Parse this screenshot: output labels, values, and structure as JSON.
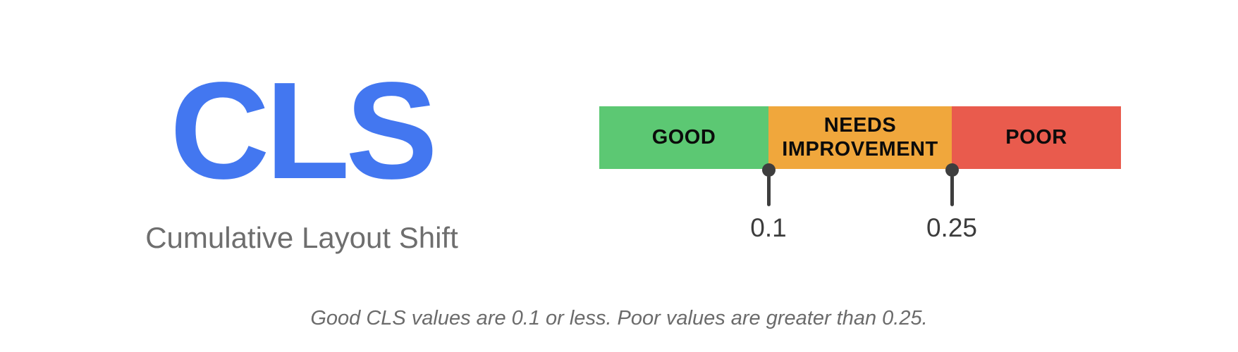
{
  "metric": {
    "abbreviation": "CLS",
    "full_name": "Cumulative Layout Shift"
  },
  "colors": {
    "title_blue": "#4377F0",
    "subtitle_gray": "#6E6E6E",
    "good_green": "#5CC873",
    "needs_improvement_orange": "#F0A73C",
    "poor_red": "#E95B4D",
    "marker_gray": "#3E3E3E",
    "threshold_label_gray": "#3C3C3C",
    "footnote_gray": "#6B6B6B",
    "segment_label_black": "#0B0B0B"
  },
  "scale_bar": {
    "segments": [
      {
        "id": "good",
        "label": "GOOD",
        "color": "#5CC873"
      },
      {
        "id": "needs-improvement",
        "label": "NEEDS IMPROVEMENT",
        "color": "#F0A73C"
      },
      {
        "id": "poor",
        "label": "POOR",
        "color": "#E95B4D"
      }
    ]
  },
  "thresholds": [
    {
      "value": "0.1"
    },
    {
      "value": "0.25"
    }
  ],
  "footnote": "Good CLS values are 0.1 or less. Poor values are greater than 0.25."
}
